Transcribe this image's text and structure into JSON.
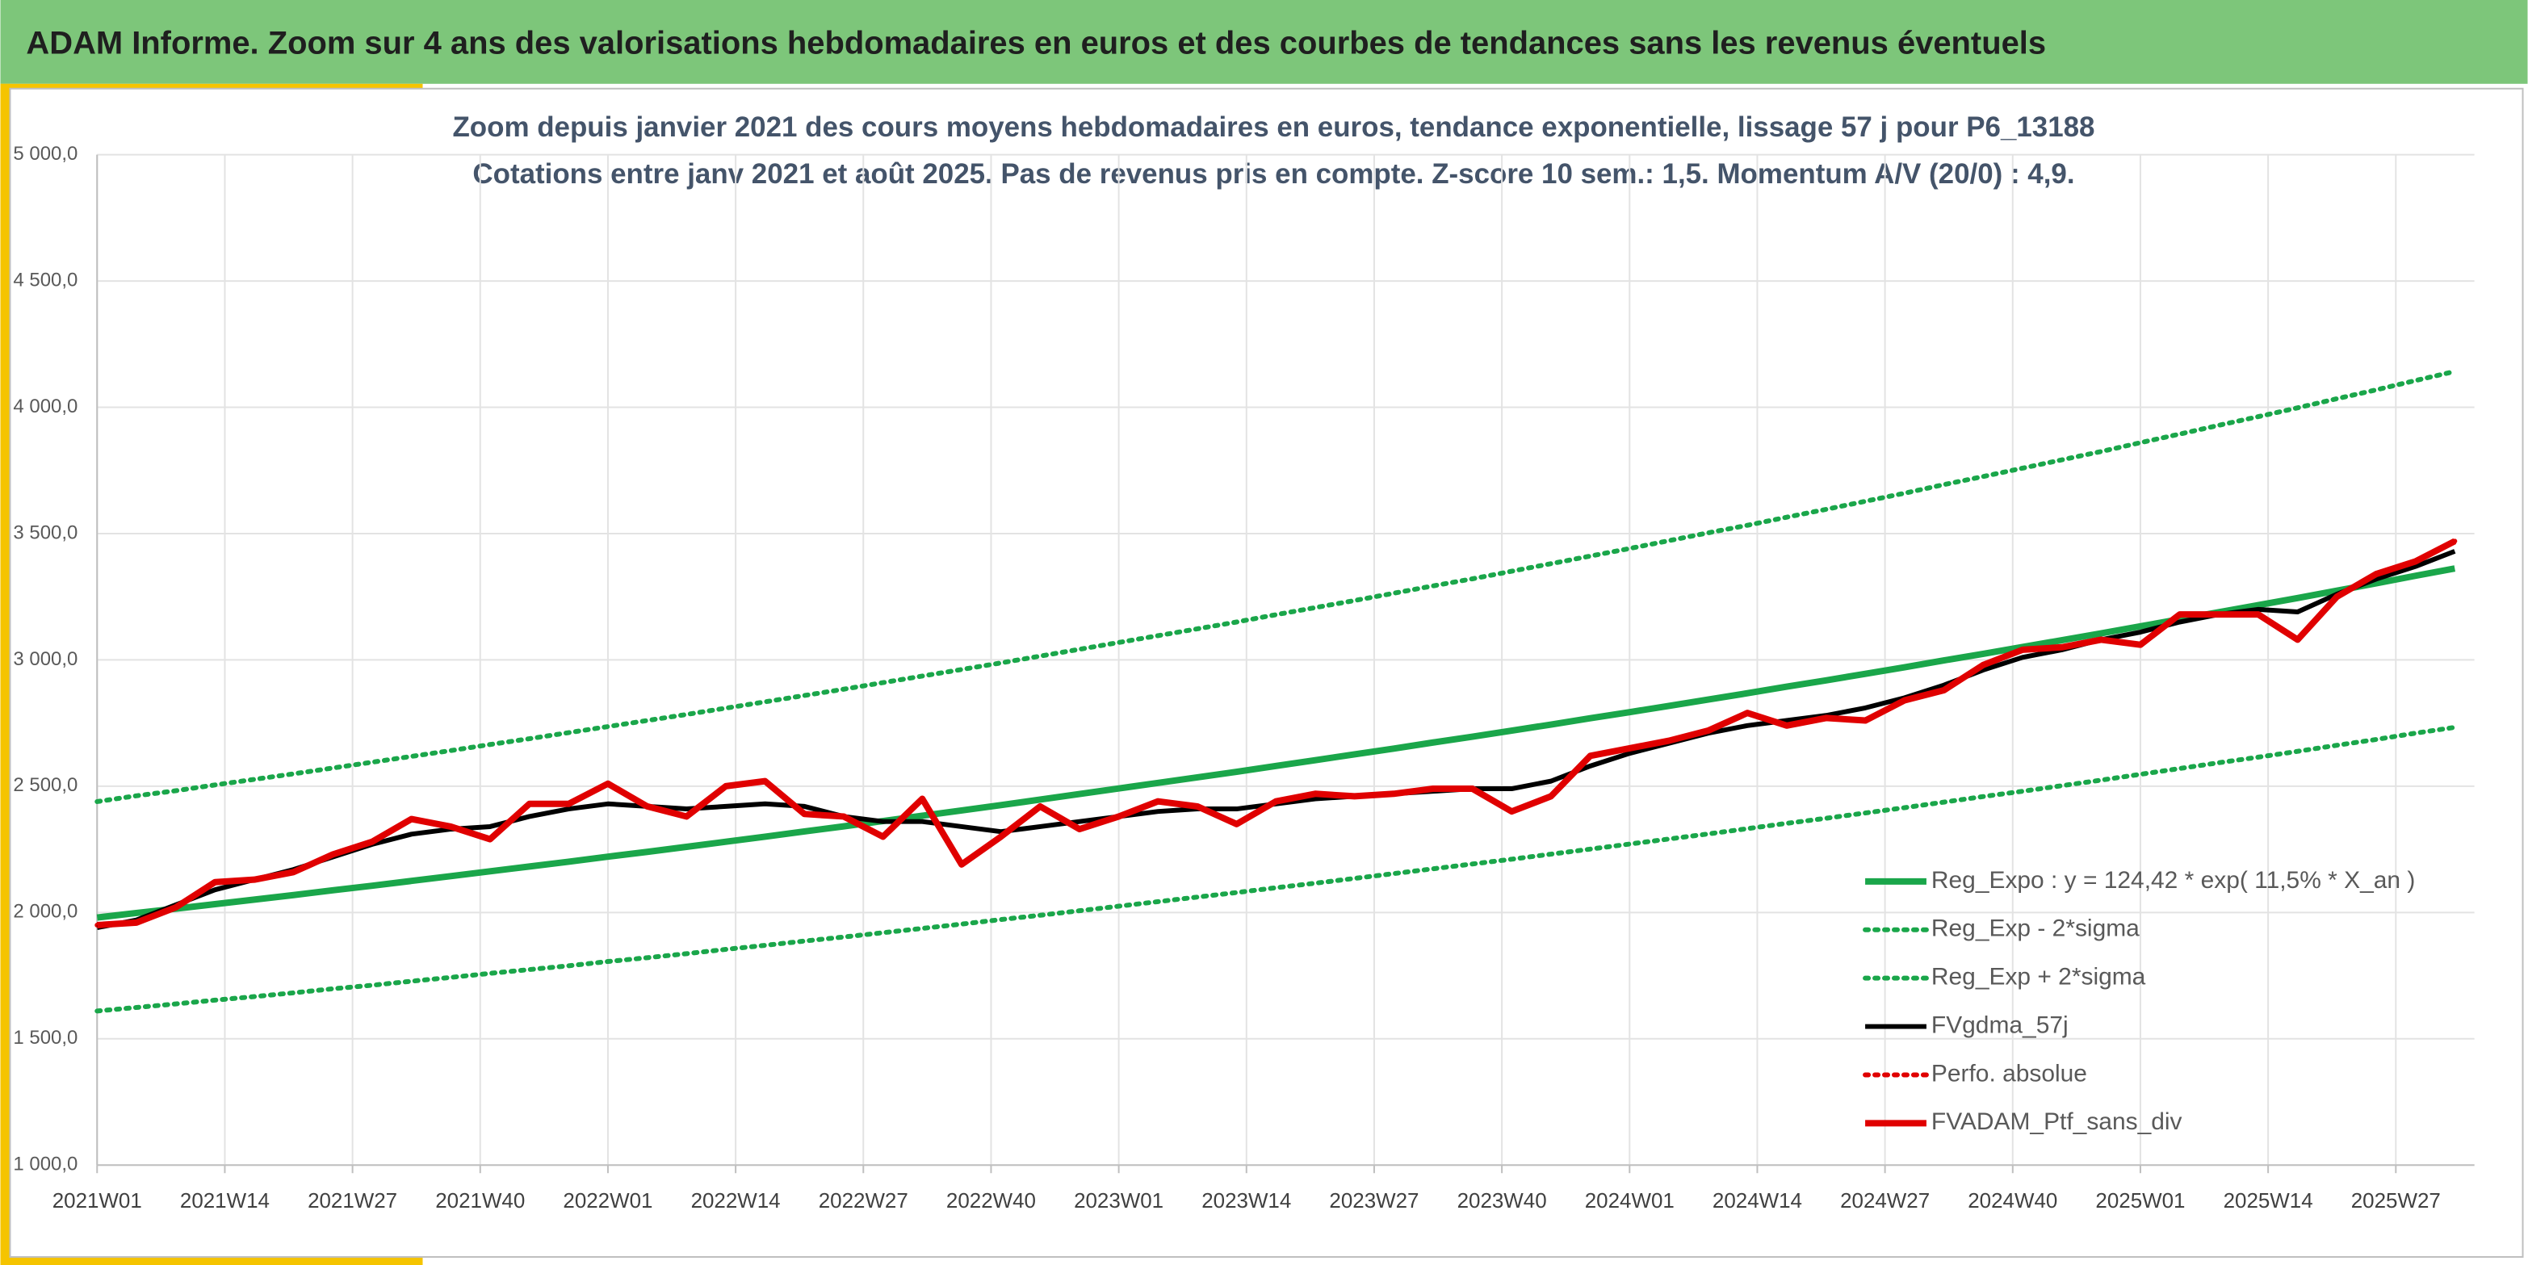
{
  "header": {
    "title": "ADAM Informe. Zoom sur 4 ans des valorisations hebdomadaires en euros et des courbes de tendances sans les revenus éventuels"
  },
  "chart_data": {
    "type": "line",
    "title": "Zoom depuis janvier 2021 des cours moyens hebdomadaires en euros, tendance exponentielle, lissage 57 j pour P6_13188",
    "subtitle": "Cotations entre janv 2021 et août 2025. Pas de revenus pris en compte. Z-score 10 sem.: 1,5. Momentum A/V (20/0) : 4,9.",
    "xlim": [
      0,
      242
    ],
    "xticks": [
      {
        "value": 0,
        "label": "2021W01"
      },
      {
        "value": 13,
        "label": "2021W14"
      },
      {
        "value": 26,
        "label": "2021W27"
      },
      {
        "value": 39,
        "label": "2021W40"
      },
      {
        "value": 52,
        "label": "2022W01"
      },
      {
        "value": 65,
        "label": "2022W14"
      },
      {
        "value": 78,
        "label": "2022W27"
      },
      {
        "value": 91,
        "label": "2022W40"
      },
      {
        "value": 104,
        "label": "2023W01"
      },
      {
        "value": 117,
        "label": "2023W14"
      },
      {
        "value": 130,
        "label": "2023W27"
      },
      {
        "value": 143,
        "label": "2023W40"
      },
      {
        "value": 156,
        "label": "2024W01"
      },
      {
        "value": 169,
        "label": "2024W14"
      },
      {
        "value": 182,
        "label": "2024W27"
      },
      {
        "value": 195,
        "label": "2024W40"
      },
      {
        "value": 208,
        "label": "2025W01"
      },
      {
        "value": 221,
        "label": "2025W14"
      },
      {
        "value": 234,
        "label": "2025W27"
      }
    ],
    "ylim": [
      1000,
      5000
    ],
    "yticks": [
      {
        "value": 1000,
        "label": "1 000,0"
      },
      {
        "value": 1500,
        "label": "1 500,0"
      },
      {
        "value": 2000,
        "label": "2 000,0"
      },
      {
        "value": 2500,
        "label": "2 500,0"
      },
      {
        "value": 3000,
        "label": "3 000,0"
      },
      {
        "value": 3500,
        "label": "3 500,0"
      },
      {
        "value": 4000,
        "label": "4 000,0"
      },
      {
        "value": 4500,
        "label": "4 500,0"
      },
      {
        "value": 5000,
        "label": "5 000,0"
      }
    ],
    "grid": true,
    "x": [
      0,
      4,
      8,
      12,
      16,
      20,
      24,
      28,
      32,
      36,
      40,
      44,
      48,
      52,
      56,
      60,
      64,
      68,
      72,
      76,
      80,
      84,
      88,
      92,
      96,
      100,
      104,
      108,
      112,
      116,
      120,
      124,
      128,
      132,
      136,
      140,
      144,
      148,
      152,
      156,
      160,
      164,
      168,
      172,
      176,
      180,
      184,
      188,
      192,
      196,
      200,
      204,
      208,
      212,
      216,
      220,
      224,
      228,
      232,
      236,
      240
    ],
    "series": [
      {
        "name": "Reg_Expo : y = 124,42 * exp( 11,5% *  X_an )",
        "color": "#1aa64a",
        "style": "solid",
        "width": 4,
        "values": [
          1980,
          1998,
          2015,
          2033,
          2051,
          2069,
          2088,
          2106,
          2125,
          2144,
          2163,
          2182,
          2201,
          2221,
          2240,
          2260,
          2280,
          2300,
          2321,
          2341,
          2362,
          2383,
          2404,
          2425,
          2447,
          2469,
          2491,
          2513,
          2535,
          2557,
          2580,
          2603,
          2626,
          2649,
          2673,
          2696,
          2720,
          2744,
          2769,
          2793,
          2818,
          2843,
          2868,
          2894,
          2919,
          2945,
          2971,
          2998,
          3024,
          3051,
          3078,
          3105,
          3133,
          3161,
          3189,
          3217,
          3245,
          3274,
          3303,
          3333,
          3362
        ]
      },
      {
        "name": "Reg_Exp - 2*sigma",
        "color": "#1aa64a",
        "style": "dotted",
        "width": 3,
        "values": [
          1610,
          1624,
          1638,
          1653,
          1667,
          1682,
          1698,
          1712,
          1728,
          1743,
          1759,
          1774,
          1789,
          1806,
          1821,
          1837,
          1854,
          1870,
          1887,
          1903,
          1920,
          1937,
          1954,
          1972,
          1989,
          2007,
          2025,
          2043,
          2061,
          2079,
          2098,
          2116,
          2135,
          2154,
          2173,
          2192,
          2211,
          2231,
          2251,
          2271,
          2291,
          2311,
          2332,
          2353,
          2373,
          2394,
          2415,
          2437,
          2459,
          2480,
          2502,
          2524,
          2547,
          2570,
          2593,
          2615,
          2638,
          2662,
          2685,
          2710,
          2733
        ]
      },
      {
        "name": "Reg_Exp + 2*sigma",
        "color": "#1aa64a",
        "style": "dotted",
        "width": 3,
        "values": [
          2439,
          2462,
          2482,
          2505,
          2527,
          2549,
          2572,
          2595,
          2618,
          2641,
          2665,
          2688,
          2712,
          2736,
          2760,
          2784,
          2809,
          2834,
          2859,
          2884,
          2910,
          2936,
          2962,
          2988,
          3015,
          3042,
          3069,
          3096,
          3123,
          3150,
          3179,
          3207,
          3235,
          3264,
          3293,
          3321,
          3351,
          3381,
          3411,
          3441,
          3472,
          3503,
          3533,
          3565,
          3596,
          3628,
          3660,
          3694,
          3726,
          3759,
          3792,
          3825,
          3860,
          3894,
          3929,
          3963,
          3998,
          4034,
          4069,
          4106,
          4142
        ]
      },
      {
        "name": "FVgdma_57j",
        "color": "#000000",
        "style": "solid",
        "width": 3,
        "values": [
          1940,
          1970,
          2030,
          2090,
          2130,
          2170,
          2220,
          2270,
          2310,
          2330,
          2340,
          2380,
          2410,
          2430,
          2420,
          2410,
          2420,
          2430,
          2420,
          2380,
          2360,
          2360,
          2340,
          2320,
          2340,
          2360,
          2380,
          2400,
          2410,
          2410,
          2430,
          2450,
          2460,
          2470,
          2480,
          2490,
          2490,
          2520,
          2580,
          2630,
          2670,
          2710,
          2740,
          2760,
          2780,
          2810,
          2850,
          2900,
          2960,
          3010,
          3040,
          3080,
          3110,
          3150,
          3180,
          3200,
          3190,
          3260,
          3320,
          3370,
          3430
        ]
      },
      {
        "name": "Perfo. absolue",
        "color": "#e00000",
        "style": "dotted",
        "width": 3,
        "values": [
          1950,
          1960,
          2020,
          2120,
          2130,
          2160,
          2230,
          2280,
          2370,
          2340,
          2290,
          2430,
          2430,
          2510,
          2420,
          2380,
          2500,
          2520,
          2390,
          2380,
          2300,
          2450,
          2190,
          2300,
          2420,
          2330,
          2380,
          2440,
          2420,
          2350,
          2440,
          2470,
          2460,
          2470,
          2490,
          2490,
          2400,
          2460,
          2620,
          2650,
          2680,
          2720,
          2790,
          2740,
          2770,
          2760,
          2840,
          2880,
          2980,
          3040,
          3050,
          3080,
          3060,
          3180,
          3180,
          3180,
          3080,
          3250,
          3340,
          3390,
          3470
        ]
      },
      {
        "name": "FVADAM_Ptf_sans_div",
        "color": "#e00000",
        "style": "solid",
        "width": 4,
        "values": [
          1950,
          1960,
          2020,
          2120,
          2130,
          2160,
          2230,
          2280,
          2370,
          2340,
          2290,
          2430,
          2430,
          2510,
          2420,
          2380,
          2500,
          2520,
          2390,
          2380,
          2300,
          2450,
          2190,
          2300,
          2420,
          2330,
          2380,
          2440,
          2420,
          2350,
          2440,
          2470,
          2460,
          2470,
          2490,
          2490,
          2400,
          2460,
          2620,
          2650,
          2680,
          2720,
          2790,
          2740,
          2770,
          2760,
          2840,
          2880,
          2980,
          3040,
          3050,
          3080,
          3060,
          3180,
          3180,
          3180,
          3080,
          3250,
          3340,
          3390,
          3470
        ]
      }
    ]
  }
}
